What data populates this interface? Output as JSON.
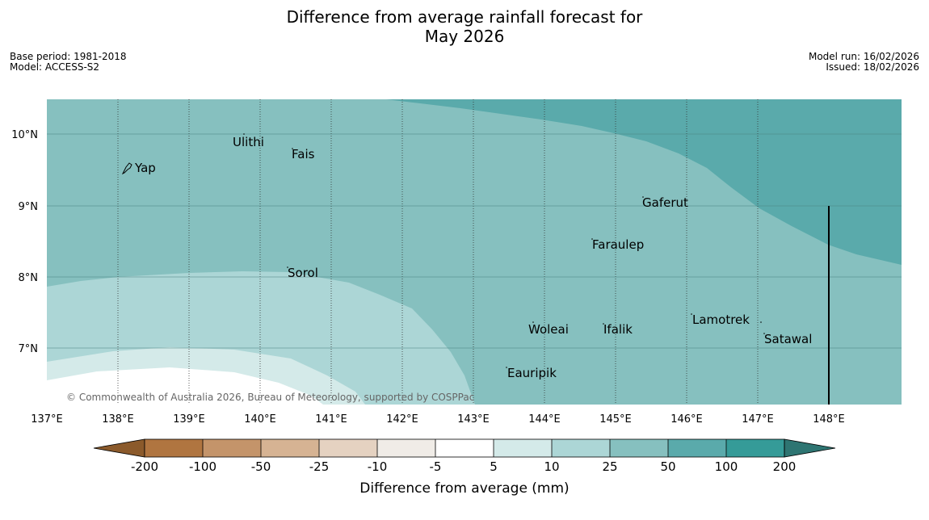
{
  "title_line1": "Difference from average rainfall forecast for",
  "title_line2": "May 2026",
  "meta_left": {
    "base_period": "Base period: 1981-2018",
    "model": "Model: ACCESS-S2"
  },
  "meta_right": {
    "model_run": "Model run: 16/02/2026",
    "issued": "Issued: 18/02/2026"
  },
  "copyright": "© Commonwealth of Australia 2026, Bureau of Meteorology, supported by COSPPac",
  "map": {
    "lon_ticks": [
      "137°E",
      "138°E",
      "139°E",
      "140°E",
      "141°E",
      "142°E",
      "143°E",
      "144°E",
      "145°E",
      "146°E",
      "147°E",
      "148°E"
    ],
    "lat_ticks": [
      "10°N",
      "9°N",
      "8°N",
      "7°N"
    ],
    "places": [
      {
        "name": "Ulithi"
      },
      {
        "name": "Fais"
      },
      {
        "name": "Yap"
      },
      {
        "name": "Gaferut"
      },
      {
        "name": "Faraulep"
      },
      {
        "name": "Sorol"
      },
      {
        "name": "Woleai"
      },
      {
        "name": "Ifalik"
      },
      {
        "name": "Lamotrek"
      },
      {
        "name": "Satawal"
      },
      {
        "name": "Eauripik"
      }
    ]
  },
  "colorbar": {
    "title": "Difference from average (mm)",
    "ticks": [
      "-200",
      "-100",
      "-50",
      "-25",
      "-10",
      "-5",
      "5",
      "10",
      "25",
      "50",
      "100",
      "200"
    ],
    "colors": {
      "lt_-200": "#8b5a2b",
      "b1": "#b07540",
      "b2": "#c4946a",
      "b3": "#d6b393",
      "b4": "#e5d2c1",
      "b5": "#f0ece7",
      "w": "#ffffff",
      "g1": "#d4eae9",
      "g2": "#acd6d6",
      "g3": "#86c0bf",
      "g4": "#5aaaab",
      "g5": "#359b98",
      "gt_200": "#2e7572"
    }
  }
}
